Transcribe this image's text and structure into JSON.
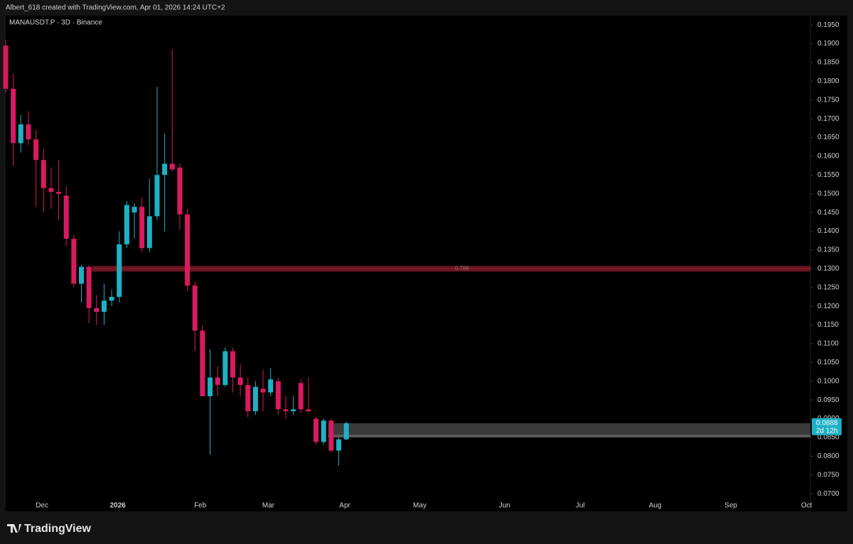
{
  "header": "Albert_618 created with TradingView.com, Apr 01, 2026 14:24 UTC+2",
  "brand": "TradingView",
  "chart_data": {
    "type": "candlestick",
    "title": "MANAUSDT.P · 3D · Binance",
    "up_color": "#1fb0c4",
    "down_color": "#d81b60",
    "open": [
      0.1895,
      0.178,
      0.1635,
      0.1685,
      0.1645,
      0.159,
      0.1515,
      0.1505,
      0.1495,
      0.138,
      0.126,
      0.1305,
      0.1195,
      0.1185,
      0.1215,
      0.1225,
      0.1365,
      0.145,
      0.1465,
      0.1355,
      0.144,
      0.155,
      0.158,
      0.157,
      0.1445,
      0.1255,
      0.1135,
      0.096,
      0.101,
      0.099,
      0.108,
      0.101,
      0.099,
      0.092,
      0.098,
      0.097,
      0.1,
      0.0925,
      0.092,
      0.0995,
      0.0925,
      0.09,
      0.0838,
      0.0895,
      0.0815,
      0.0845
    ],
    "high": [
      0.191,
      0.182,
      0.171,
      0.172,
      0.167,
      0.162,
      0.157,
      0.159,
      0.152,
      0.139,
      0.131,
      0.131,
      0.123,
      0.126,
      0.1245,
      0.14,
      0.148,
      0.1475,
      0.149,
      0.154,
      0.1785,
      0.166,
      0.1885,
      0.158,
      0.146,
      0.1265,
      0.115,
      0.1085,
      0.104,
      0.109,
      0.109,
      0.1045,
      0.101,
      0.1,
      0.103,
      0.1035,
      0.101,
      0.096,
      0.096,
      0.1005,
      0.101,
      0.0905,
      0.09,
      0.09,
      0.085,
      0.0892
    ],
    "low": [
      0.177,
      0.1575,
      0.161,
      0.163,
      0.1465,
      0.145,
      0.146,
      0.143,
      0.136,
      0.125,
      0.121,
      0.1155,
      0.115,
      0.115,
      0.12,
      0.121,
      0.1355,
      0.138,
      0.1345,
      0.1345,
      0.143,
      0.14,
      0.156,
      0.1405,
      0.124,
      0.108,
      0.096,
      0.0805,
      0.096,
      0.0985,
      0.097,
      0.096,
      0.0905,
      0.091,
      0.092,
      0.096,
      0.091,
      0.09,
      0.091,
      0.0915,
      0.0915,
      0.083,
      0.083,
      0.081,
      0.0775,
      0.0843
    ],
    "close": [
      0.178,
      0.1635,
      0.1685,
      0.1645,
      0.159,
      0.1515,
      0.1505,
      0.15,
      0.138,
      0.126,
      0.1305,
      0.1195,
      0.1185,
      0.1215,
      0.1225,
      0.1365,
      0.147,
      0.1465,
      0.1355,
      0.144,
      0.155,
      0.158,
      0.1565,
      0.1445,
      0.1255,
      0.1135,
      0.096,
      0.101,
      0.099,
      0.108,
      0.101,
      0.099,
      0.092,
      0.0985,
      0.097,
      0.1005,
      0.0925,
      0.092,
      0.0925,
      0.0925,
      0.092,
      0.0838,
      0.0895,
      0.0815,
      0.0845,
      0.0888
    ],
    "xlim": [
      0,
      106.3
    ],
    "xticks": [
      {
        "value": 4.8,
        "label": "Dec"
      },
      {
        "value": 14.8,
        "label": "2026"
      },
      {
        "value": 25.7,
        "label": "Feb"
      },
      {
        "value": 34.7,
        "label": "Mar"
      },
      {
        "value": 44.8,
        "label": "Apr"
      },
      {
        "value": 54.7,
        "label": "May"
      },
      {
        "value": 65.9,
        "label": "Jun"
      },
      {
        "value": 75.9,
        "label": "Jul"
      },
      {
        "value": 85.8,
        "label": "Aug"
      },
      {
        "value": 95.8,
        "label": "Sep"
      },
      {
        "value": 105.8,
        "label": "Oct"
      }
    ],
    "ylim": [
      0.0653,
      0.1975
    ],
    "yticks": [
      {
        "value": 0.07,
        "label": "0.0700"
      },
      {
        "value": 0.075,
        "label": "0.0750"
      },
      {
        "value": 0.08,
        "label": "0.0800"
      },
      {
        "value": 0.085,
        "label": "0.0850"
      },
      {
        "value": 0.09,
        "label": "0.0900"
      },
      {
        "value": 0.095,
        "label": "0.0950"
      },
      {
        "value": 0.1,
        "label": "0.1000"
      },
      {
        "value": 0.105,
        "label": "0.1050"
      },
      {
        "value": 0.11,
        "label": "0.1100"
      },
      {
        "value": 0.115,
        "label": "0.1150"
      },
      {
        "value": 0.12,
        "label": "0.1200"
      },
      {
        "value": 0.125,
        "label": "0.1250"
      },
      {
        "value": 0.13,
        "label": "0.1300"
      },
      {
        "value": 0.135,
        "label": "0.1350"
      },
      {
        "value": 0.14,
        "label": "0.1400"
      },
      {
        "value": 0.145,
        "label": "0.1450"
      },
      {
        "value": 0.15,
        "label": "0.1500"
      },
      {
        "value": 0.155,
        "label": "0.1550"
      },
      {
        "value": 0.16,
        "label": "0.1600"
      },
      {
        "value": 0.165,
        "label": "0.1650"
      },
      {
        "value": 0.17,
        "label": "0.1700"
      },
      {
        "value": 0.175,
        "label": "0.1750"
      },
      {
        "value": 0.18,
        "label": "0.1800"
      },
      {
        "value": 0.185,
        "label": "0.1850"
      },
      {
        "value": 0.19,
        "label": "0.1900"
      },
      {
        "value": 0.195,
        "label": "0.1950"
      }
    ],
    "level": {
      "value": 0.13,
      "label": "0.786",
      "color": "#8b1c2a"
    },
    "zone": {
      "top": 0.0888,
      "bottom": 0.085
    },
    "last_price": {
      "value": 0.0888,
      "label": "0.0888"
    },
    "countdown": "2d 12h"
  }
}
